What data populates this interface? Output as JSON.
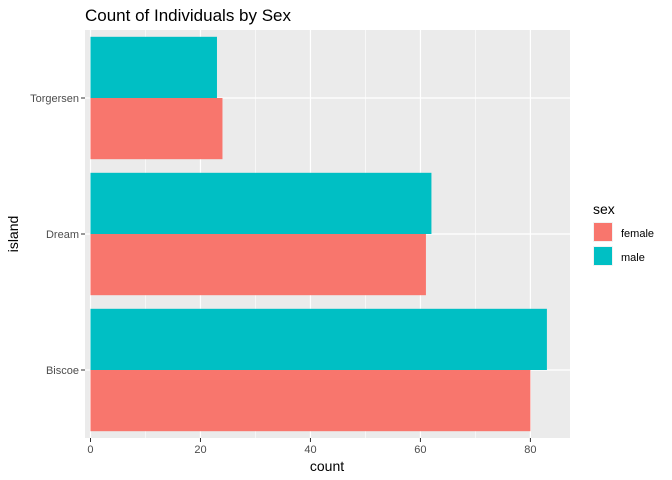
{
  "chart_data": {
    "type": "bar",
    "orientation": "horizontal",
    "position": "dodge",
    "title": "Count of Individuals by Sex",
    "xlabel": "count",
    "ylabel": "island",
    "categories": [
      "Biscoe",
      "Dream",
      "Torgersen"
    ],
    "series": [
      {
        "name": "female",
        "color": "#F8766D",
        "values": [
          80,
          61,
          24
        ]
      },
      {
        "name": "male",
        "color": "#00BFC4",
        "values": [
          83,
          62,
          23
        ]
      }
    ],
    "xlim": [
      -1,
      87.2
    ],
    "xticks": [
      0,
      20,
      40,
      60,
      80
    ],
    "grid": true,
    "legend": {
      "title": "sex",
      "placement": "right"
    },
    "panel_color": "#EBEBEB"
  }
}
